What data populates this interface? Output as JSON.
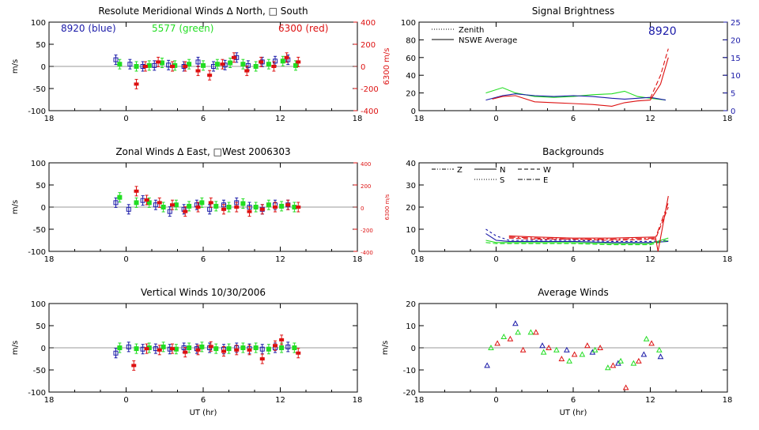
{
  "colors": {
    "blue": "#1a1aa8",
    "green": "#22dd22",
    "red": "#dd1111",
    "axis": "#000000"
  },
  "chart_data": [
    {
      "type": "scatter",
      "title": "Resolute Meridional Winds ∆ North, □ South",
      "ylabel": "m/s",
      "ylabel2": "6300 m/s",
      "xlim": [
        -6,
        18
      ],
      "xticks": [
        "18",
        "0",
        "6",
        "12",
        "18"
      ],
      "ylim": [
        -100,
        100
      ],
      "yticks": [
        "100",
        "50",
        "0",
        "-50",
        "-100"
      ],
      "ylim2": [
        -400,
        400
      ],
      "yticks2": [
        "400",
        "200",
        "0",
        "-200",
        "-400"
      ],
      "labels": {
        "blue": "8920 (blue)",
        "green": "5577 (green)",
        "red": "6300 (red)"
      },
      "series": [
        {
          "color": "blue",
          "x": [
            -0.8,
            0.3,
            1.3,
            2.2,
            3.3,
            4.5,
            5.6,
            6.8,
            7.7,
            8.6,
            9.5,
            10.6,
            11.6,
            12.6
          ],
          "y": [
            15,
            5,
            0,
            2,
            3,
            0,
            10,
            0,
            3,
            20,
            2,
            10,
            12,
            15
          ]
        },
        {
          "color": "green",
          "x": [
            -0.5,
            0.8,
            1.8,
            2.8,
            3.8,
            4.9,
            6.0,
            7.1,
            8.1,
            9.1,
            10.1,
            11.1,
            12.2,
            13.2
          ],
          "y": [
            5,
            0,
            2,
            8,
            2,
            5,
            2,
            5,
            8,
            5,
            0,
            5,
            12,
            2
          ]
        },
        {
          "color": "red",
          "x": [
            0.8,
            1.5,
            2.5,
            3.6,
            4.6,
            5.6,
            6.5,
            7.5,
            8.4,
            9.4,
            10.5,
            11.5,
            12.5,
            13.4
          ],
          "y": [
            -40,
            0,
            10,
            0,
            0,
            -10,
            -20,
            5,
            20,
            -10,
            10,
            0,
            20,
            10
          ]
        }
      ]
    },
    {
      "type": "line",
      "title": "Signal Brightness",
      "label_8920": "8920",
      "xlim": [
        -6,
        18
      ],
      "xticks": [
        "18",
        "0",
        "6",
        "12",
        "18"
      ],
      "ylim": [
        0,
        100
      ],
      "yticks": [
        "100",
        "80",
        "60",
        "40",
        "20",
        "0"
      ],
      "ylim2": [
        0,
        25
      ],
      "yticks2": [
        "25",
        "20",
        "15",
        "10",
        "5",
        "0"
      ],
      "legend": [
        {
          "style": "dotted",
          "label": "Zenith"
        },
        {
          "style": "solid",
          "label": "NSWE Average"
        }
      ],
      "series": [
        {
          "color": "green",
          "x": [
            -0.8,
            0.5,
            1.5,
            3,
            4.5,
            6,
            7.5,
            9,
            10,
            11,
            12,
            13.2
          ],
          "y": [
            20,
            26,
            20,
            16,
            15,
            16,
            18,
            19,
            22,
            16,
            14,
            12
          ]
        },
        {
          "color": "blue",
          "x": [
            -0.8,
            0.5,
            1.5,
            3,
            4.5,
            6,
            7.5,
            9,
            10,
            11,
            12,
            13.2
          ],
          "y": [
            12,
            17,
            19,
            17,
            16,
            17,
            16,
            14,
            13,
            14,
            15,
            12
          ]
        },
        {
          "color": "red",
          "x": [
            -0.3,
            0.5,
            1.5,
            3,
            4.5,
            6,
            7.5,
            9,
            10,
            11,
            12,
            12.8,
            13.4
          ],
          "y": [
            13,
            16,
            17,
            10,
            9,
            8,
            7,
            5,
            9,
            11,
            12,
            30,
            60
          ]
        },
        {
          "color": "red",
          "dash": "6,3",
          "x": [
            12,
            12.8,
            13.4
          ],
          "y": [
            14,
            40,
            70
          ]
        }
      ]
    },
    {
      "type": "scatter",
      "title": "Zonal Winds ∆ East, □West 2006303",
      "ylabel": "m/s",
      "ylabel2": "6300 m/s",
      "xlim": [
        -6,
        18
      ],
      "xticks": [
        "18",
        "0",
        "6",
        "12",
        "18"
      ],
      "ylim": [
        -100,
        100
      ],
      "yticks": [
        "100",
        "50",
        "0",
        "-50",
        "-100"
      ],
      "ylim2": [
        -400,
        400
      ],
      "yticks2": [
        "400",
        "200",
        "0",
        "-200",
        "-400"
      ],
      "series": [
        {
          "color": "blue",
          "x": [
            -0.8,
            0.2,
            1.3,
            2.3,
            3.4,
            4.5,
            5.5,
            6.5,
            7.6,
            8.6,
            9.6,
            10.6,
            11.6,
            12.6
          ],
          "y": [
            10,
            -5,
            15,
            5,
            -10,
            -5,
            5,
            -5,
            5,
            10,
            0,
            -5,
            5,
            5
          ]
        },
        {
          "color": "green",
          "x": [
            -0.5,
            0.8,
            1.8,
            2.9,
            3.9,
            4.9,
            5.9,
            7.0,
            8.0,
            9.1,
            10.1,
            11.1,
            12.1,
            13.1
          ],
          "y": [
            22,
            10,
            10,
            0,
            5,
            2,
            10,
            2,
            0,
            8,
            0,
            5,
            2,
            0
          ]
        },
        {
          "color": "red",
          "x": [
            0.8,
            1.6,
            2.6,
            3.6,
            4.6,
            5.6,
            6.6,
            7.6,
            8.6,
            9.6,
            10.6,
            11.6,
            12.6,
            13.4
          ],
          "y": [
            36,
            16,
            10,
            5,
            -10,
            0,
            10,
            -5,
            0,
            -10,
            -5,
            0,
            5,
            0
          ]
        }
      ]
    },
    {
      "type": "line",
      "title": "Backgrounds",
      "xlim": [
        -6,
        18
      ],
      "xticks": [
        "18",
        "0",
        "6",
        "12",
        "18"
      ],
      "ylim": [
        0,
        40
      ],
      "yticks": [
        "40",
        "30",
        "20",
        "10",
        "0"
      ],
      "legend": [
        {
          "style": "dash-dot-dot",
          "label": "Z"
        },
        {
          "style": "solid",
          "label": "N"
        },
        {
          "style": "dashed",
          "label": "W"
        },
        {
          "style": "dotted",
          "label": "S"
        },
        {
          "style": "dash-dot",
          "label": "E"
        }
      ],
      "series": [
        {
          "color": "blue",
          "dash": "3,3",
          "x": [
            -0.8,
            0,
            1,
            3,
            6,
            9,
            12,
            13.4
          ],
          "y": [
            10,
            7,
            5,
            5,
            5,
            4.5,
            4.5,
            5
          ]
        },
        {
          "color": "blue",
          "x": [
            -0.8,
            0,
            1,
            3,
            6,
            9,
            12,
            13.4
          ],
          "y": [
            8,
            5,
            4.5,
            4.5,
            4.5,
            4,
            4,
            4.5
          ]
        },
        {
          "color": "green",
          "x": [
            -0.8,
            0,
            1,
            3,
            6,
            9,
            12,
            13.4
          ],
          "y": [
            5,
            4,
            4,
            4,
            4,
            3.5,
            3.5,
            6
          ]
        },
        {
          "color": "green",
          "dash": "6,3",
          "x": [
            -0.8,
            0,
            1,
            3,
            6,
            9,
            12,
            13.4
          ],
          "y": [
            4,
            3.5,
            3.5,
            3.5,
            3.5,
            3,
            3,
            5
          ]
        },
        {
          "color": "red",
          "x": [
            1,
            3,
            6,
            9,
            12.4,
            12.6,
            13.4
          ],
          "y": [
            7,
            6.5,
            6,
            6,
            6.5,
            0,
            25
          ]
        },
        {
          "color": "red",
          "dash": "8,3,2,3",
          "x": [
            1,
            3,
            6,
            9,
            12.4,
            13.4
          ],
          "y": [
            6.5,
            6,
            5.5,
            5.5,
            6,
            22
          ]
        },
        {
          "color": "red",
          "dash": "6,3",
          "x": [
            1,
            3,
            6,
            9,
            12.4,
            13.4
          ],
          "y": [
            6,
            5.5,
            5.5,
            5,
            5.5,
            20
          ]
        }
      ]
    },
    {
      "type": "scatter",
      "title": "Vertical Winds 10/30/2006",
      "xlabel": "UT (hr)",
      "ylabel": "m/s",
      "xlim": [
        -6,
        18
      ],
      "xticks": [
        "18",
        "0",
        "6",
        "12",
        "18"
      ],
      "ylim": [
        -100,
        100
      ],
      "yticks": [
        "100",
        "50",
        "0",
        "-50",
        "-100"
      ],
      "series": [
        {
          "color": "blue",
          "x": [
            -0.8,
            0.2,
            1.3,
            2.3,
            3.4,
            4.5,
            5.5,
            6.5,
            7.6,
            8.6,
            9.6,
            10.6,
            11.6,
            12.6
          ],
          "y": [
            -12,
            2,
            -3,
            -2,
            -3,
            0,
            -2,
            0,
            -3,
            0,
            -2,
            -3,
            0,
            2
          ]
        },
        {
          "color": "green",
          "x": [
            -0.5,
            0.8,
            1.8,
            2.9,
            3.9,
            4.9,
            5.9,
            7.0,
            8.0,
            9.1,
            10.1,
            11.1,
            12.1,
            13.1
          ],
          "y": [
            0,
            -2,
            0,
            2,
            -3,
            0,
            2,
            -2,
            -2,
            0,
            0,
            -3,
            0,
            0
          ]
        },
        {
          "color": "red",
          "x": [
            0.6,
            1.6,
            2.6,
            3.6,
            4.6,
            5.6,
            6.6,
            7.6,
            8.6,
            9.6,
            10.6,
            11.6,
            12.1,
            13.4
          ],
          "y": [
            -40,
            -2,
            -5,
            -2,
            -10,
            -5,
            3,
            -8,
            -5,
            -5,
            -25,
            5,
            18,
            -12
          ]
        }
      ]
    },
    {
      "type": "scatter",
      "title": "Average Winds",
      "xlabel": "UT (hr)",
      "ylabel": "m/s",
      "xlim": [
        -6,
        18
      ],
      "xticks": [
        "18",
        "0",
        "6",
        "12",
        "18"
      ],
      "ylim": [
        -20,
        20
      ],
      "yticks": [
        "20",
        "10",
        "0",
        "-10",
        "-20"
      ],
      "series": [
        {
          "color": "blue",
          "x": [
            -0.7,
            1.5,
            3.6,
            5.5,
            7.5,
            9.5,
            11.5,
            12.8
          ],
          "y": [
            -8,
            11,
            1,
            -1,
            -2,
            -7,
            -3,
            -4
          ]
        },
        {
          "color": "green",
          "x": [
            -0.4,
            0.6,
            1.7,
            2.7,
            3.7,
            4.7,
            5.7,
            6.7,
            7.7,
            8.7,
            9.7,
            10.7,
            11.7,
            12.7
          ],
          "y": [
            0,
            5,
            7,
            7,
            -2,
            -1,
            -6,
            -3,
            -1,
            -9,
            -6,
            -7,
            4,
            -1
          ]
        },
        {
          "color": "red",
          "x": [
            0.1,
            1.1,
            2.1,
            3.1,
            4.1,
            5.1,
            6.1,
            7.1,
            8.1,
            9.1,
            10.1,
            11.1,
            12.1
          ],
          "y": [
            2,
            4,
            -1,
            7,
            0,
            -5,
            -3,
            1,
            0,
            -8,
            -18,
            -6,
            2
          ]
        }
      ]
    }
  ]
}
